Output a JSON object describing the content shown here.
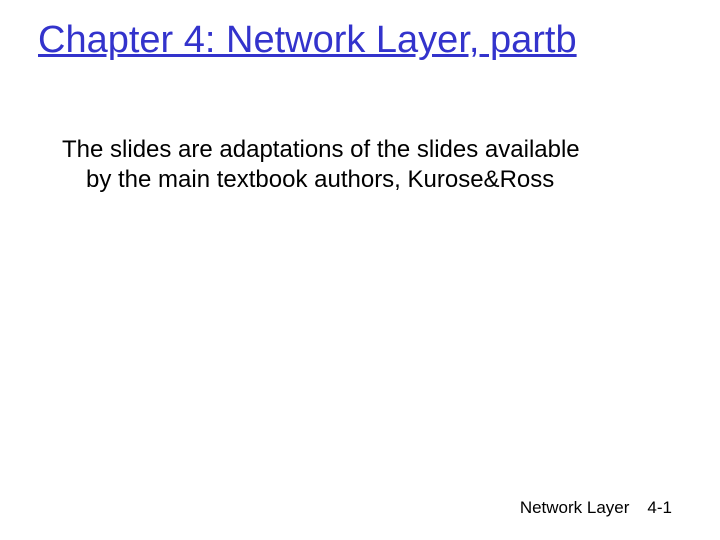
{
  "title": "Chapter 4: Network Layer, partb",
  "body": "The slides are adaptations of the slides available by the main textbook authors, Kurose&Ross",
  "footer": {
    "label": "Network Layer",
    "page": "4-1"
  },
  "colors": {
    "title": "#3333cc",
    "text": "#000000",
    "background": "#ffffff"
  },
  "typography": {
    "font_family": "Comic Sans MS",
    "title_fontsize": 38,
    "body_fontsize": 24,
    "footer_fontsize": 17
  }
}
